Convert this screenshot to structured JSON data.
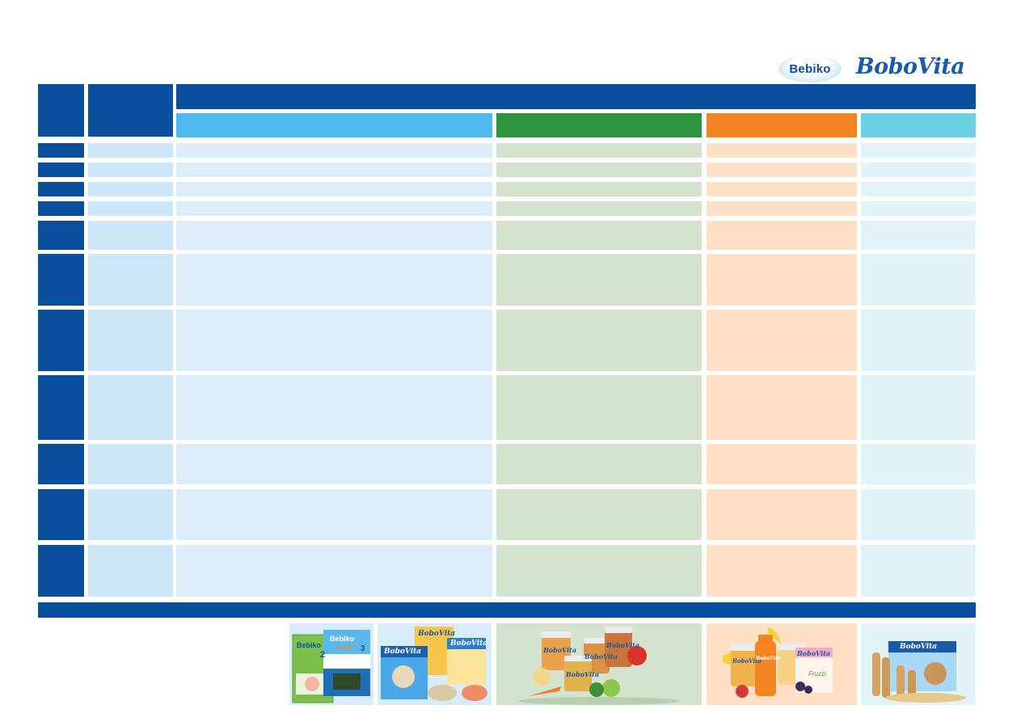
{
  "logos": {
    "bebiko": "Bebiko",
    "bobovita": "BoboVita"
  },
  "colors": {
    "navy": "#0a4f9d",
    "blue_header": "#4fb9ed",
    "green_header": "#2a953d",
    "orange_header": "#f28522",
    "cyan_header": "#6ccfe2",
    "blue_pale": "#dcecf8",
    "green_pale": "#d3e3cd",
    "orange_pale": "#fde0c6",
    "cyan_pale": "#e2f3f8"
  },
  "products": {
    "bebiko_box_1": "Bebiko",
    "bebiko_box_1_num": "2",
    "bebiko_box_2": "Bebiko",
    "bebiko_box_2_sub": "Junior",
    "bebiko_box_2_num": "3",
    "bobovita_cereal_1": "BoboVita",
    "bobovita_cereal_2": "BoboVita",
    "bobovita_cereal_3": "BoboVita",
    "bobovita_jar_1": "BoboVita",
    "bobovita_jar_2": "BoboVita",
    "bobovita_jar_3": "BoboVita",
    "bobovita_jar_4": "BoboVita",
    "bobovita_fruit_jar": "BoboVita",
    "bobovita_juice": "BoboVita",
    "bobovita_drink_box": "BoboVita",
    "bobovita_drink_box_sub": "Fruzzi",
    "bobovita_biscuits": "BoboVita"
  }
}
